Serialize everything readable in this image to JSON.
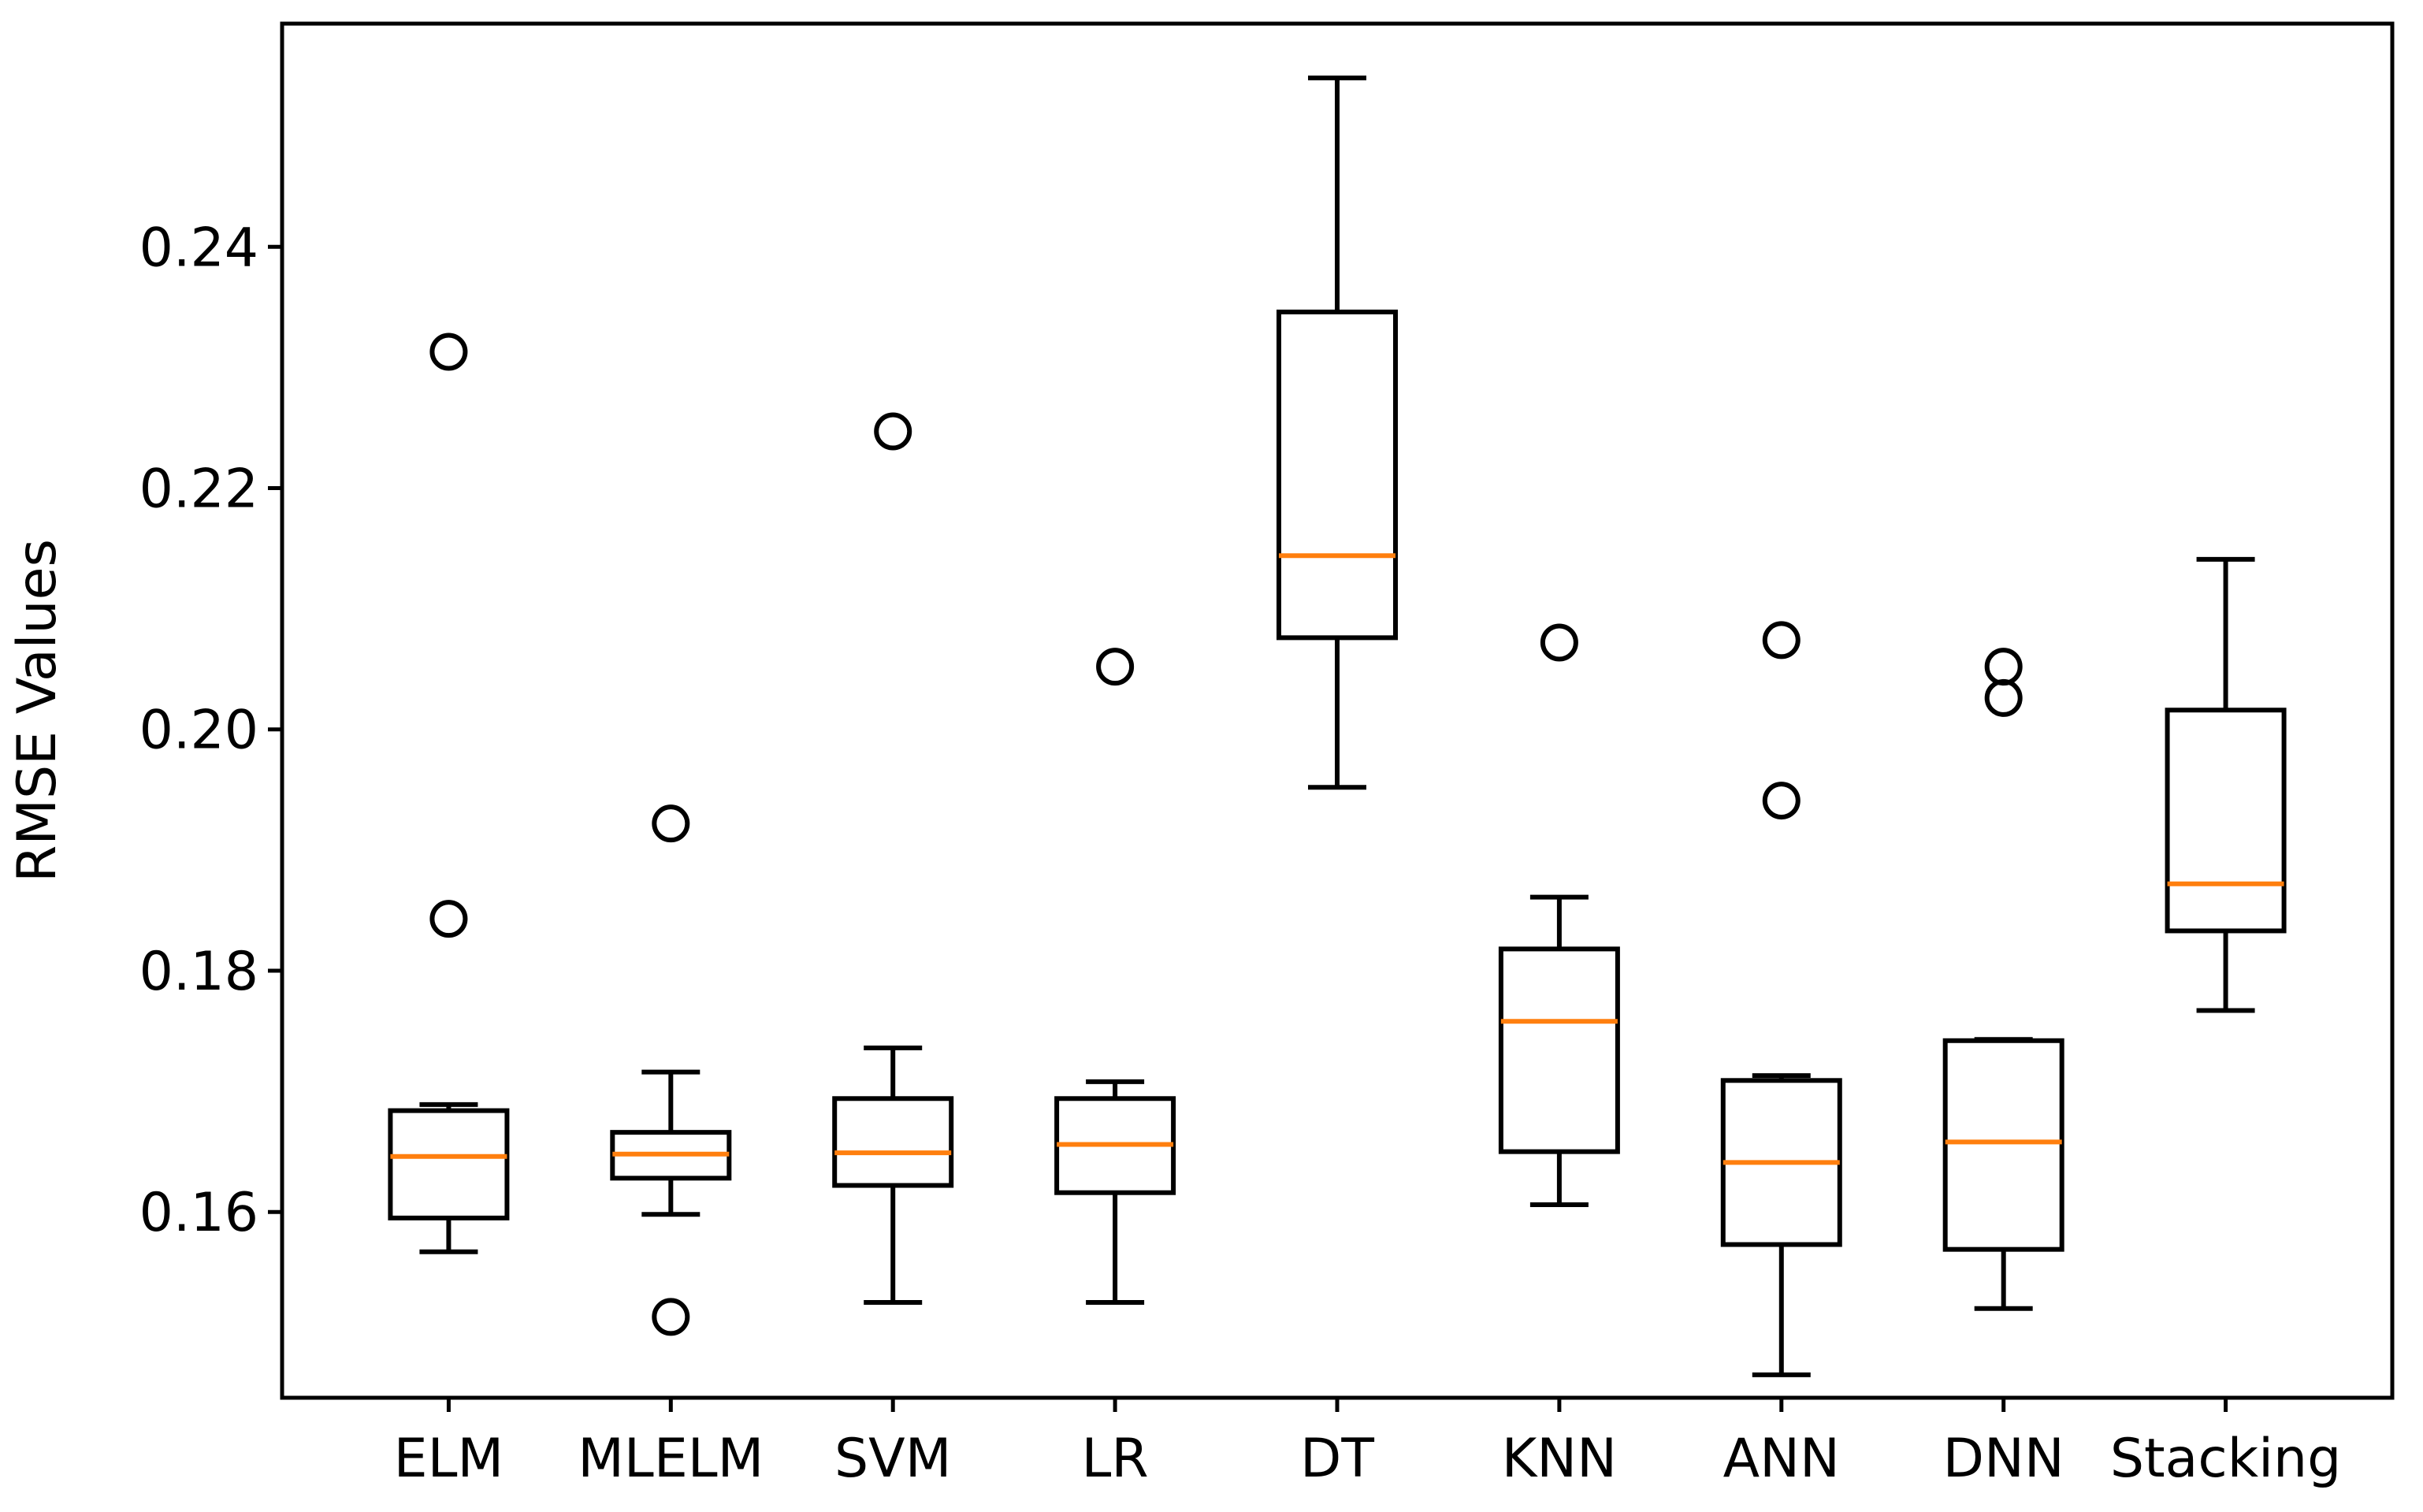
{
  "chart_data": {
    "type": "boxplot",
    "title": "",
    "xlabel": "",
    "ylabel": "RMSE Values",
    "ylim": [
      0.1446,
      0.2585
    ],
    "yticks": [
      0.16,
      0.18,
      0.2,
      0.22,
      0.24
    ],
    "ytick_labels": [
      "0.16",
      "0.18",
      "0.20",
      "0.22",
      "0.24"
    ],
    "categories": [
      "ELM",
      "MLELM",
      "SVM",
      "LR",
      "DT",
      "KNN",
      "ANN",
      "DNN",
      "Stacking"
    ],
    "boxes": [
      {
        "name": "ELM",
        "whisker_low": 0.1567,
        "q1": 0.1595,
        "median": 0.1646,
        "q3": 0.1684,
        "whisker_high": 0.1689,
        "outliers": [
          0.1843,
          0.2313
        ]
      },
      {
        "name": "MLELM",
        "whisker_low": 0.1598,
        "q1": 0.1628,
        "median": 0.1648,
        "q3": 0.1666,
        "whisker_high": 0.1716,
        "outliers": [
          0.1513,
          0.1922
        ]
      },
      {
        "name": "SVM",
        "whisker_low": 0.1525,
        "q1": 0.1622,
        "median": 0.1649,
        "q3": 0.1694,
        "whisker_high": 0.1736,
        "outliers": [
          0.2247
        ]
      },
      {
        "name": "LR",
        "whisker_low": 0.1525,
        "q1": 0.1616,
        "median": 0.1656,
        "q3": 0.1694,
        "whisker_high": 0.1708,
        "outliers": [
          0.2052
        ]
      },
      {
        "name": "DT",
        "whisker_low": 0.1952,
        "q1": 0.2076,
        "median": 0.2144,
        "q3": 0.2346,
        "whisker_high": 0.254,
        "outliers": []
      },
      {
        "name": "KNN",
        "whisker_low": 0.1606,
        "q1": 0.165,
        "median": 0.1758,
        "q3": 0.1818,
        "whisker_high": 0.1861,
        "outliers": [
          0.2072
        ]
      },
      {
        "name": "ANN",
        "whisker_low": 0.1465,
        "q1": 0.1573,
        "median": 0.1641,
        "q3": 0.1709,
        "whisker_high": 0.1713,
        "outliers": [
          0.1941,
          0.2074
        ]
      },
      {
        "name": "DNN",
        "whisker_low": 0.152,
        "q1": 0.1569,
        "median": 0.1658,
        "q3": 0.1742,
        "whisker_high": 0.1743,
        "outliers": [
          0.2026,
          0.2052
        ]
      },
      {
        "name": "Stacking",
        "whisker_low": 0.1767,
        "q1": 0.1833,
        "median": 0.1872,
        "q3": 0.2016,
        "whisker_high": 0.2141,
        "outliers": []
      }
    ],
    "colors": {
      "box": "#000000",
      "median": "#ff7f0e",
      "axes": "#000000"
    },
    "grid": false,
    "legend": "none"
  }
}
